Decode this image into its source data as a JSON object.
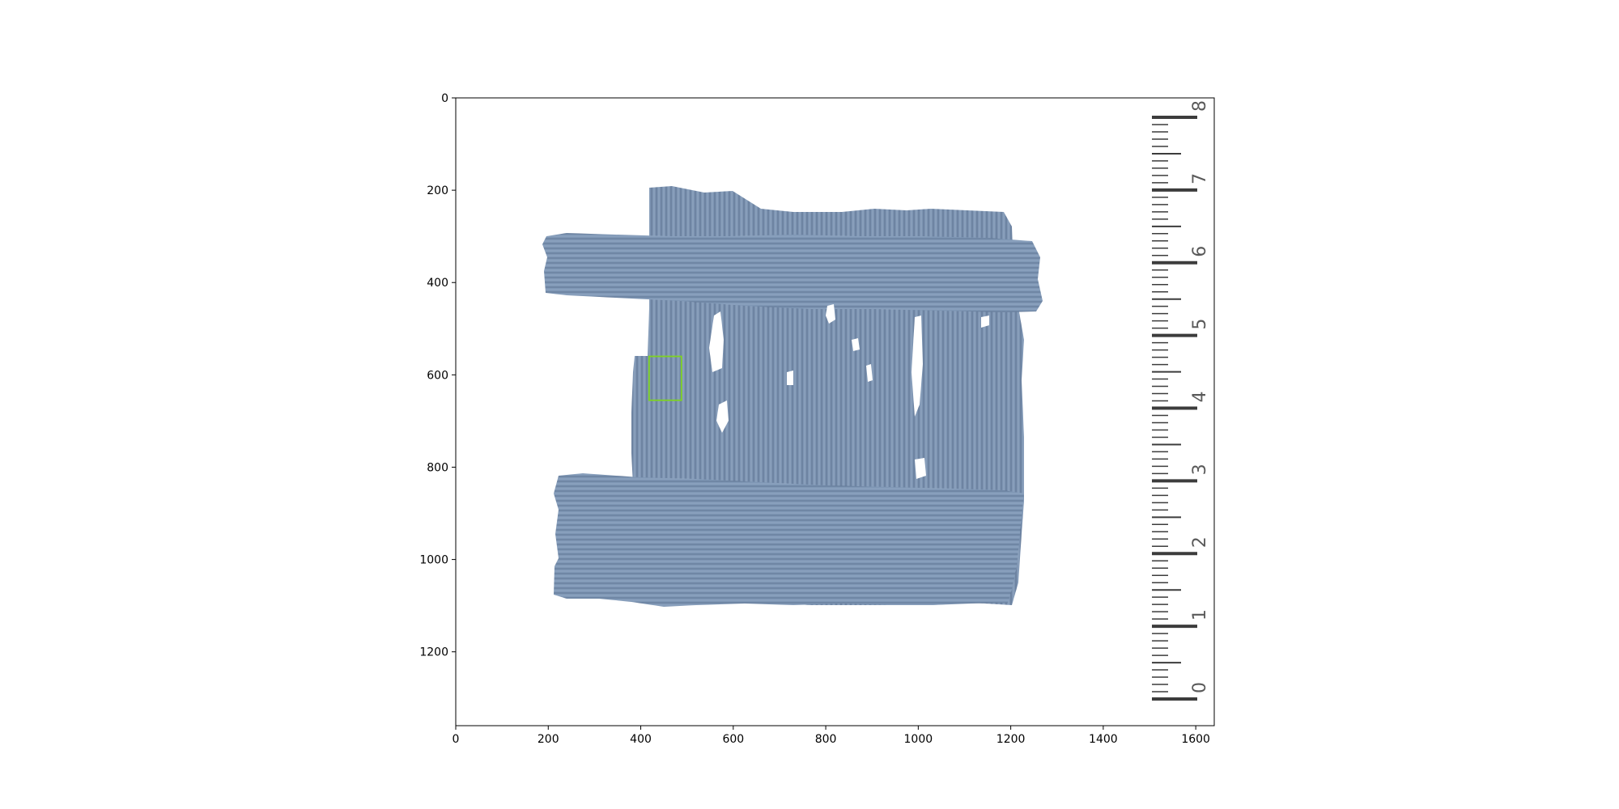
{
  "figure": {
    "x_axis": {
      "ticks": [
        "0",
        "200",
        "400",
        "600",
        "800",
        "1000",
        "1200",
        "1400",
        "1600"
      ],
      "range": [
        0,
        1640
      ]
    },
    "y_axis": {
      "ticks": [
        "0",
        "200",
        "400",
        "600",
        "800",
        "1000",
        "1200"
      ],
      "range": [
        0,
        1360
      ]
    },
    "image": {
      "subject": "papyrus fragment with woven horizontal and vertical fibre strips",
      "fragment_color": "#7d95b3",
      "fragment_dark_color": "#4f6480",
      "hole_color": "#ffffff"
    },
    "ruler": {
      "numbers": [
        "0",
        "1",
        "2",
        "3",
        "4",
        "5",
        "6",
        "7",
        "8"
      ],
      "color": "#3c3c3c"
    },
    "highlight_box": {
      "color": "#7ed321",
      "x_range": [
        418,
        488
      ],
      "y_range": [
        560,
        655
      ]
    }
  }
}
